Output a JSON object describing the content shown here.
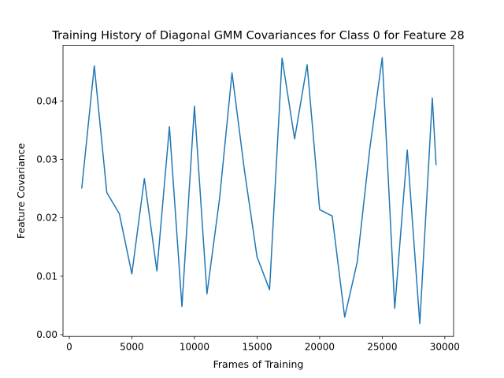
{
  "chart_data": {
    "type": "line",
    "title": "Training History of Diagonal GMM Covariances for Class 0 for Feature 28",
    "xlabel": "Frames of Training",
    "ylabel": "Feature Covariance",
    "xlim": [
      -500,
      30700
    ],
    "ylim": [
      -0.0003,
      0.0495
    ],
    "xticks": [
      0,
      5000,
      10000,
      15000,
      20000,
      25000,
      30000
    ],
    "xtick_labels": [
      "0",
      "5000",
      "10000",
      "15000",
      "20000",
      "25000",
      "30000"
    ],
    "yticks": [
      0.0,
      0.01,
      0.02,
      0.03,
      0.04
    ],
    "ytick_labels": [
      "0.00",
      "0.01",
      "0.02",
      "0.03",
      "0.04"
    ],
    "grid": false,
    "series": [
      {
        "color": "#1f77b4",
        "x": [
          1000,
          2000,
          3000,
          4000,
          5000,
          6000,
          7000,
          8000,
          9000,
          10000,
          11000,
          12000,
          13000,
          14000,
          15000,
          16000,
          17000,
          18000,
          19000,
          20000,
          21000,
          22000,
          23000,
          24000,
          25000,
          26000,
          27000,
          28000,
          29000,
          29300
        ],
        "y": [
          0.0251,
          0.046,
          0.0243,
          0.0207,
          0.0104,
          0.0267,
          0.0109,
          0.0356,
          0.0048,
          0.0391,
          0.007,
          0.0232,
          0.0448,
          0.028,
          0.0133,
          0.0077,
          0.0473,
          0.0335,
          0.0462,
          0.0214,
          0.0203,
          0.003,
          0.0124,
          0.0317,
          0.0474,
          0.0045,
          0.0316,
          0.0019,
          0.0405,
          0.0291
        ]
      }
    ]
  }
}
